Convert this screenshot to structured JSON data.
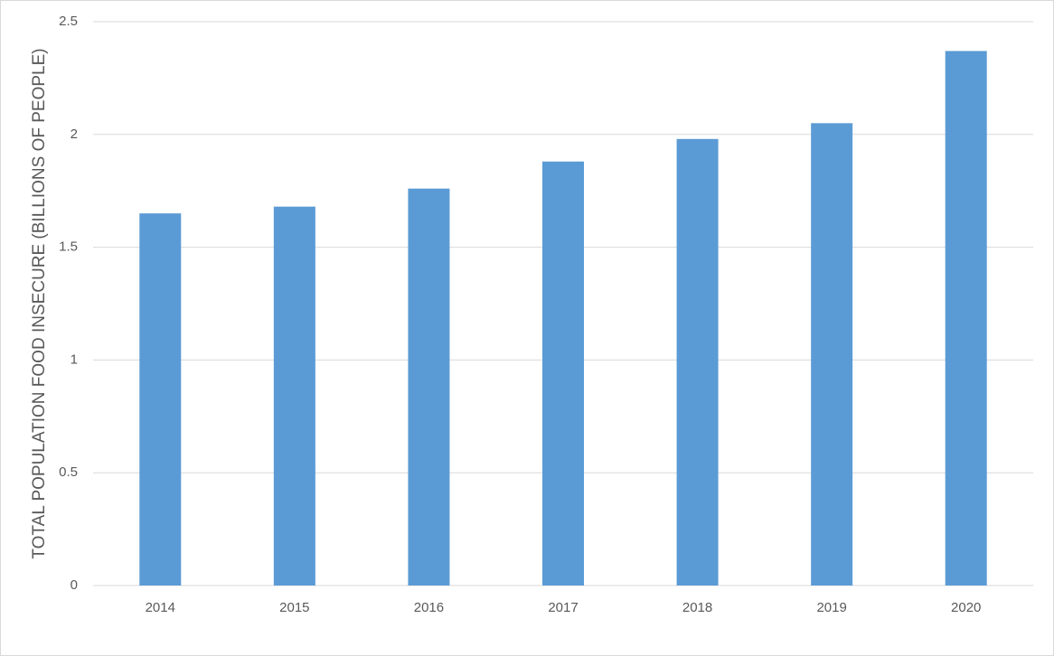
{
  "chart_data": {
    "type": "bar",
    "y_label": "TOTAL POPULATION FOOD INSECURE (BILLIONS OF PEOPLE)",
    "categories": [
      "2014",
      "2015",
      "2016",
      "2017",
      "2018",
      "2019",
      "2020"
    ],
    "values": [
      1.65,
      1.68,
      1.76,
      1.88,
      1.98,
      2.05,
      2.37
    ],
    "color": "#5b9bd5",
    "ylim": [
      0,
      2.5
    ],
    "yticks": [
      0,
      0.5,
      1,
      1.5,
      2,
      2.5
    ],
    "grid": true
  }
}
